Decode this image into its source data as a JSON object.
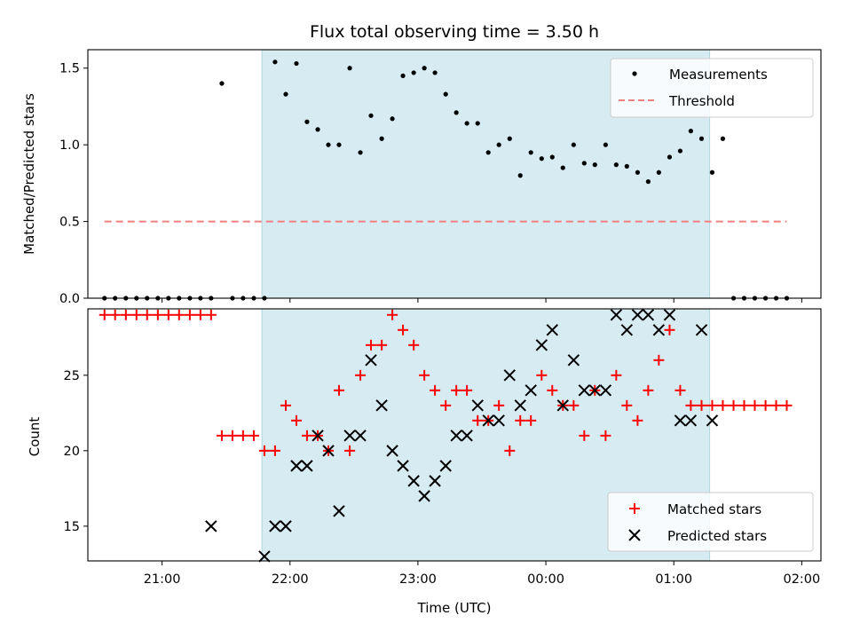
{
  "chart_data": [
    {
      "type": "scatter",
      "title": "Flux total observing time = 3.50 h",
      "ylabel": "Matched/Predicted stars",
      "xlabel": "",
      "x_unit": "hours since 20:00 UTC",
      "xlim": [
        0.42,
        6.15
      ],
      "ylim": [
        0.0,
        1.62
      ],
      "yticks": [
        0.0,
        0.5,
        1.0,
        1.5
      ],
      "ytick_labels": [
        "0.0",
        "0.5",
        "1.0",
        "1.5"
      ],
      "shaded_span": [
        1.78,
        5.28
      ],
      "legend": {
        "placement": "top-right",
        "entries": [
          "Measurements",
          "Threshold"
        ]
      },
      "series": [
        {
          "name": "Measurements",
          "color": "#000000",
          "marker": "dot",
          "x": [
            0.55,
            0.633,
            0.717,
            0.8,
            0.883,
            0.967,
            1.05,
            1.133,
            1.217,
            1.3,
            1.383,
            1.467,
            1.55,
            1.633,
            1.717,
            1.8,
            1.883,
            1.967,
            2.05,
            2.133,
            2.217,
            2.3,
            2.383,
            2.467,
            2.55,
            2.633,
            2.717,
            2.8,
            2.883,
            2.967,
            3.05,
            3.133,
            3.217,
            3.3,
            3.383,
            3.467,
            3.55,
            3.633,
            3.717,
            3.8,
            3.883,
            3.967,
            4.05,
            4.133,
            4.217,
            4.3,
            4.383,
            4.467,
            4.55,
            4.633,
            4.717,
            4.8,
            4.883,
            4.967,
            5.05,
            5.133,
            5.217,
            5.3,
            5.383,
            5.467,
            5.55,
            5.633,
            5.717,
            5.8,
            5.883
          ],
          "y": [
            0,
            0,
            0,
            0,
            0,
            0,
            0,
            0,
            0,
            0,
            0,
            1.4,
            0,
            0,
            0,
            0,
            1.54,
            1.33,
            1.53,
            1.15,
            1.1,
            1.0,
            1.0,
            1.5,
            0.95,
            1.19,
            1.04,
            1.17,
            1.45,
            1.47,
            1.5,
            1.47,
            1.33,
            1.21,
            1.14,
            1.14,
            0.95,
            1.0,
            1.04,
            0.8,
            0.95,
            0.91,
            0.92,
            0.85,
            1.0,
            0.88,
            0.87,
            1.0,
            0.87,
            0.86,
            0.82,
            0.76,
            0.82,
            0.92,
            0.96,
            1.09,
            1.04,
            0.82,
            1.04,
            0,
            0,
            0,
            0,
            0,
            0
          ]
        },
        {
          "name": "Threshold",
          "color": "#f08080",
          "style": "dashed",
          "x": [
            0.55,
            5.883
          ],
          "y": [
            0.5,
            0.5
          ]
        }
      ]
    },
    {
      "type": "scatter",
      "title": "",
      "ylabel": "Count",
      "xlabel": "Time (UTC)",
      "x_unit": "hours since 20:00 UTC",
      "xlim": [
        0.42,
        6.15
      ],
      "ylim": [
        12.7,
        29.4
      ],
      "yticks": [
        15,
        20,
        25
      ],
      "ytick_labels": [
        "15",
        "20",
        "25"
      ],
      "xticks": [
        1,
        2,
        3,
        4,
        5,
        6
      ],
      "xtick_labels": [
        "21:00",
        "22:00",
        "23:00",
        "00:00",
        "01:00",
        "02:00"
      ],
      "shaded_span": [
        1.78,
        5.28
      ],
      "legend": {
        "placement": "bottom-right",
        "entries": [
          "Matched stars",
          "Predicted stars"
        ]
      },
      "series": [
        {
          "name": "Matched stars",
          "color": "#ff0000",
          "marker": "plus",
          "x": [
            0.55,
            0.633,
            0.717,
            0.8,
            0.883,
            0.967,
            1.05,
            1.133,
            1.217,
            1.3,
            1.383,
            1.467,
            1.55,
            1.633,
            1.717,
            1.8,
            1.883,
            1.967,
            2.05,
            2.133,
            2.217,
            2.3,
            2.383,
            2.467,
            2.55,
            2.633,
            2.717,
            2.8,
            2.883,
            2.967,
            3.05,
            3.133,
            3.217,
            3.3,
            3.383,
            3.467,
            3.55,
            3.633,
            3.717,
            3.8,
            3.883,
            3.967,
            4.05,
            4.133,
            4.217,
            4.3,
            4.383,
            4.467,
            4.55,
            4.633,
            4.717,
            4.8,
            4.883,
            4.967,
            5.05,
            5.133,
            5.217,
            5.3,
            5.383,
            5.467,
            5.55,
            5.633,
            5.717,
            5.8,
            5.883
          ],
          "y": [
            29,
            29,
            29,
            29,
            29,
            29,
            29,
            29,
            29,
            29,
            29,
            21,
            21,
            21,
            21,
            20,
            20,
            23,
            22,
            21,
            21,
            20,
            24,
            20,
            25,
            27,
            27,
            29,
            28,
            27,
            25,
            24,
            23,
            24,
            24,
            22,
            22,
            23,
            20,
            22,
            22,
            25,
            24,
            23,
            23,
            21,
            24,
            21,
            25,
            23,
            22,
            24,
            26,
            28,
            24,
            23,
            23,
            23,
            23,
            23,
            23,
            23,
            23,
            23,
            23
          ]
        },
        {
          "name": "Predicted stars",
          "color": "#000000",
          "marker": "x",
          "x": [
            1.383,
            1.8,
            1.883,
            1.967,
            2.05,
            2.133,
            2.217,
            2.3,
            2.383,
            2.467,
            2.55,
            2.633,
            2.717,
            2.8,
            2.883,
            2.967,
            3.05,
            3.133,
            3.217,
            3.3,
            3.383,
            3.467,
            3.55,
            3.633,
            3.717,
            3.8,
            3.883,
            3.967,
            4.05,
            4.133,
            4.217,
            4.3,
            4.383,
            4.467,
            4.55,
            4.633,
            4.717,
            4.8,
            4.883,
            4.967,
            5.05,
            5.133,
            5.217,
            5.3
          ],
          "y": [
            15,
            13,
            15,
            15,
            19,
            19,
            21,
            20,
            16,
            21,
            21,
            26,
            23,
            20,
            19,
            18,
            17,
            18,
            19,
            21,
            21,
            23,
            22,
            22,
            25,
            23,
            24,
            27,
            28,
            23,
            26,
            24,
            24,
            24,
            29,
            28,
            29,
            29,
            28,
            29,
            22,
            22,
            28,
            22
          ]
        }
      ]
    }
  ]
}
